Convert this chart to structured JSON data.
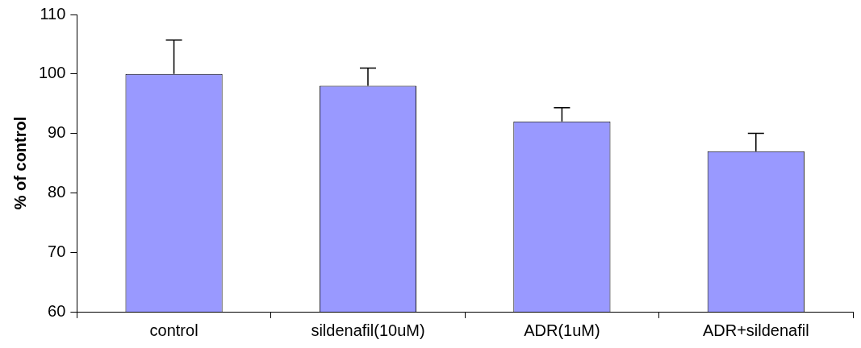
{
  "chart_data": {
    "type": "bar",
    "ylabel": "% of control",
    "categories": [
      "control",
      "sildenafil(10uM)",
      "ADR(1uM)",
      "ADR+sildenafil"
    ],
    "values": [
      100,
      98,
      92,
      87
    ],
    "errors": [
      [
        100,
        105.7
      ],
      [
        98,
        101
      ],
      [
        92,
        94.3
      ],
      [
        87,
        90
      ]
    ],
    "color": "#9999ff",
    "ylim": [
      60,
      110
    ],
    "yticks": [
      60,
      70,
      80,
      90,
      100,
      110
    ],
    "grid": false,
    "legend": false
  }
}
